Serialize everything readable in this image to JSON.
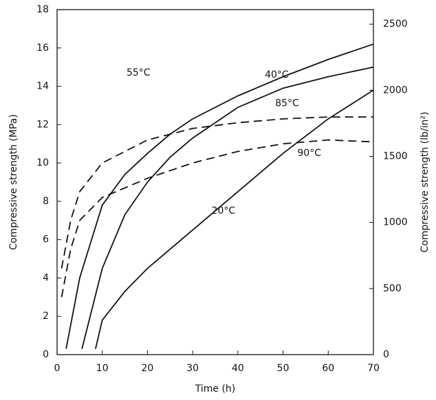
{
  "chart_data": {
    "type": "line",
    "xlabel": "Time (h)",
    "ylabel": "Compressive strength (MPa)",
    "y2label": "Compressive strength (lb/in²)",
    "xlim": [
      0,
      70
    ],
    "xticks": [
      0,
      10,
      20,
      30,
      40,
      50,
      60,
      70
    ],
    "ylim": [
      0,
      18
    ],
    "yticks": [
      0,
      2,
      4,
      6,
      8,
      10,
      12,
      14,
      16,
      18
    ],
    "y2lim": [
      0,
      2610
    ],
    "y2ticks": [
      0,
      500,
      1000,
      1500,
      2000,
      2500
    ],
    "series": [
      {
        "name": "55°C",
        "color": "#111111",
        "linestyle": "solid",
        "x": [
          2,
          5,
          10,
          15,
          20,
          25,
          30,
          40,
          50,
          60,
          70
        ],
        "values": [
          0.3,
          4,
          7.8,
          9.4,
          10.5,
          11.5,
          12.3,
          13.5,
          14.5,
          15.4,
          16.2
        ]
      },
      {
        "name": "40°C",
        "color": "#111111",
        "linestyle": "solid",
        "x": [
          5.5,
          10,
          15,
          20,
          25,
          30,
          40,
          50,
          60,
          70
        ],
        "values": [
          0.3,
          4.5,
          7.3,
          9,
          10.3,
          11.3,
          12.9,
          13.9,
          14.5,
          15
        ]
      },
      {
        "name": "20°C",
        "color": "#111111",
        "linestyle": "solid",
        "x": [
          8.5,
          10,
          15,
          20,
          30,
          40,
          50,
          60,
          70
        ],
        "values": [
          0.3,
          1.8,
          3.3,
          4.5,
          6.5,
          8.5,
          10.5,
          12.3,
          13.8
        ]
      },
      {
        "name": "85°C",
        "color": "#111111",
        "linestyle": "dashed",
        "x": [
          1,
          3,
          5,
          10,
          20,
          30,
          40,
          50,
          60,
          70
        ],
        "values": [
          4.5,
          7,
          8.5,
          10,
          11.2,
          11.8,
          12.1,
          12.3,
          12.4,
          12.4
        ]
      },
      {
        "name": "90°C",
        "color": "#111111",
        "linestyle": "dashed",
        "x": [
          1,
          3,
          5,
          10,
          20,
          30,
          40,
          50,
          60,
          70
        ],
        "values": [
          3,
          5.5,
          7,
          8.2,
          9.2,
          10,
          10.6,
          11,
          11.2,
          11.1
        ]
      }
    ]
  }
}
